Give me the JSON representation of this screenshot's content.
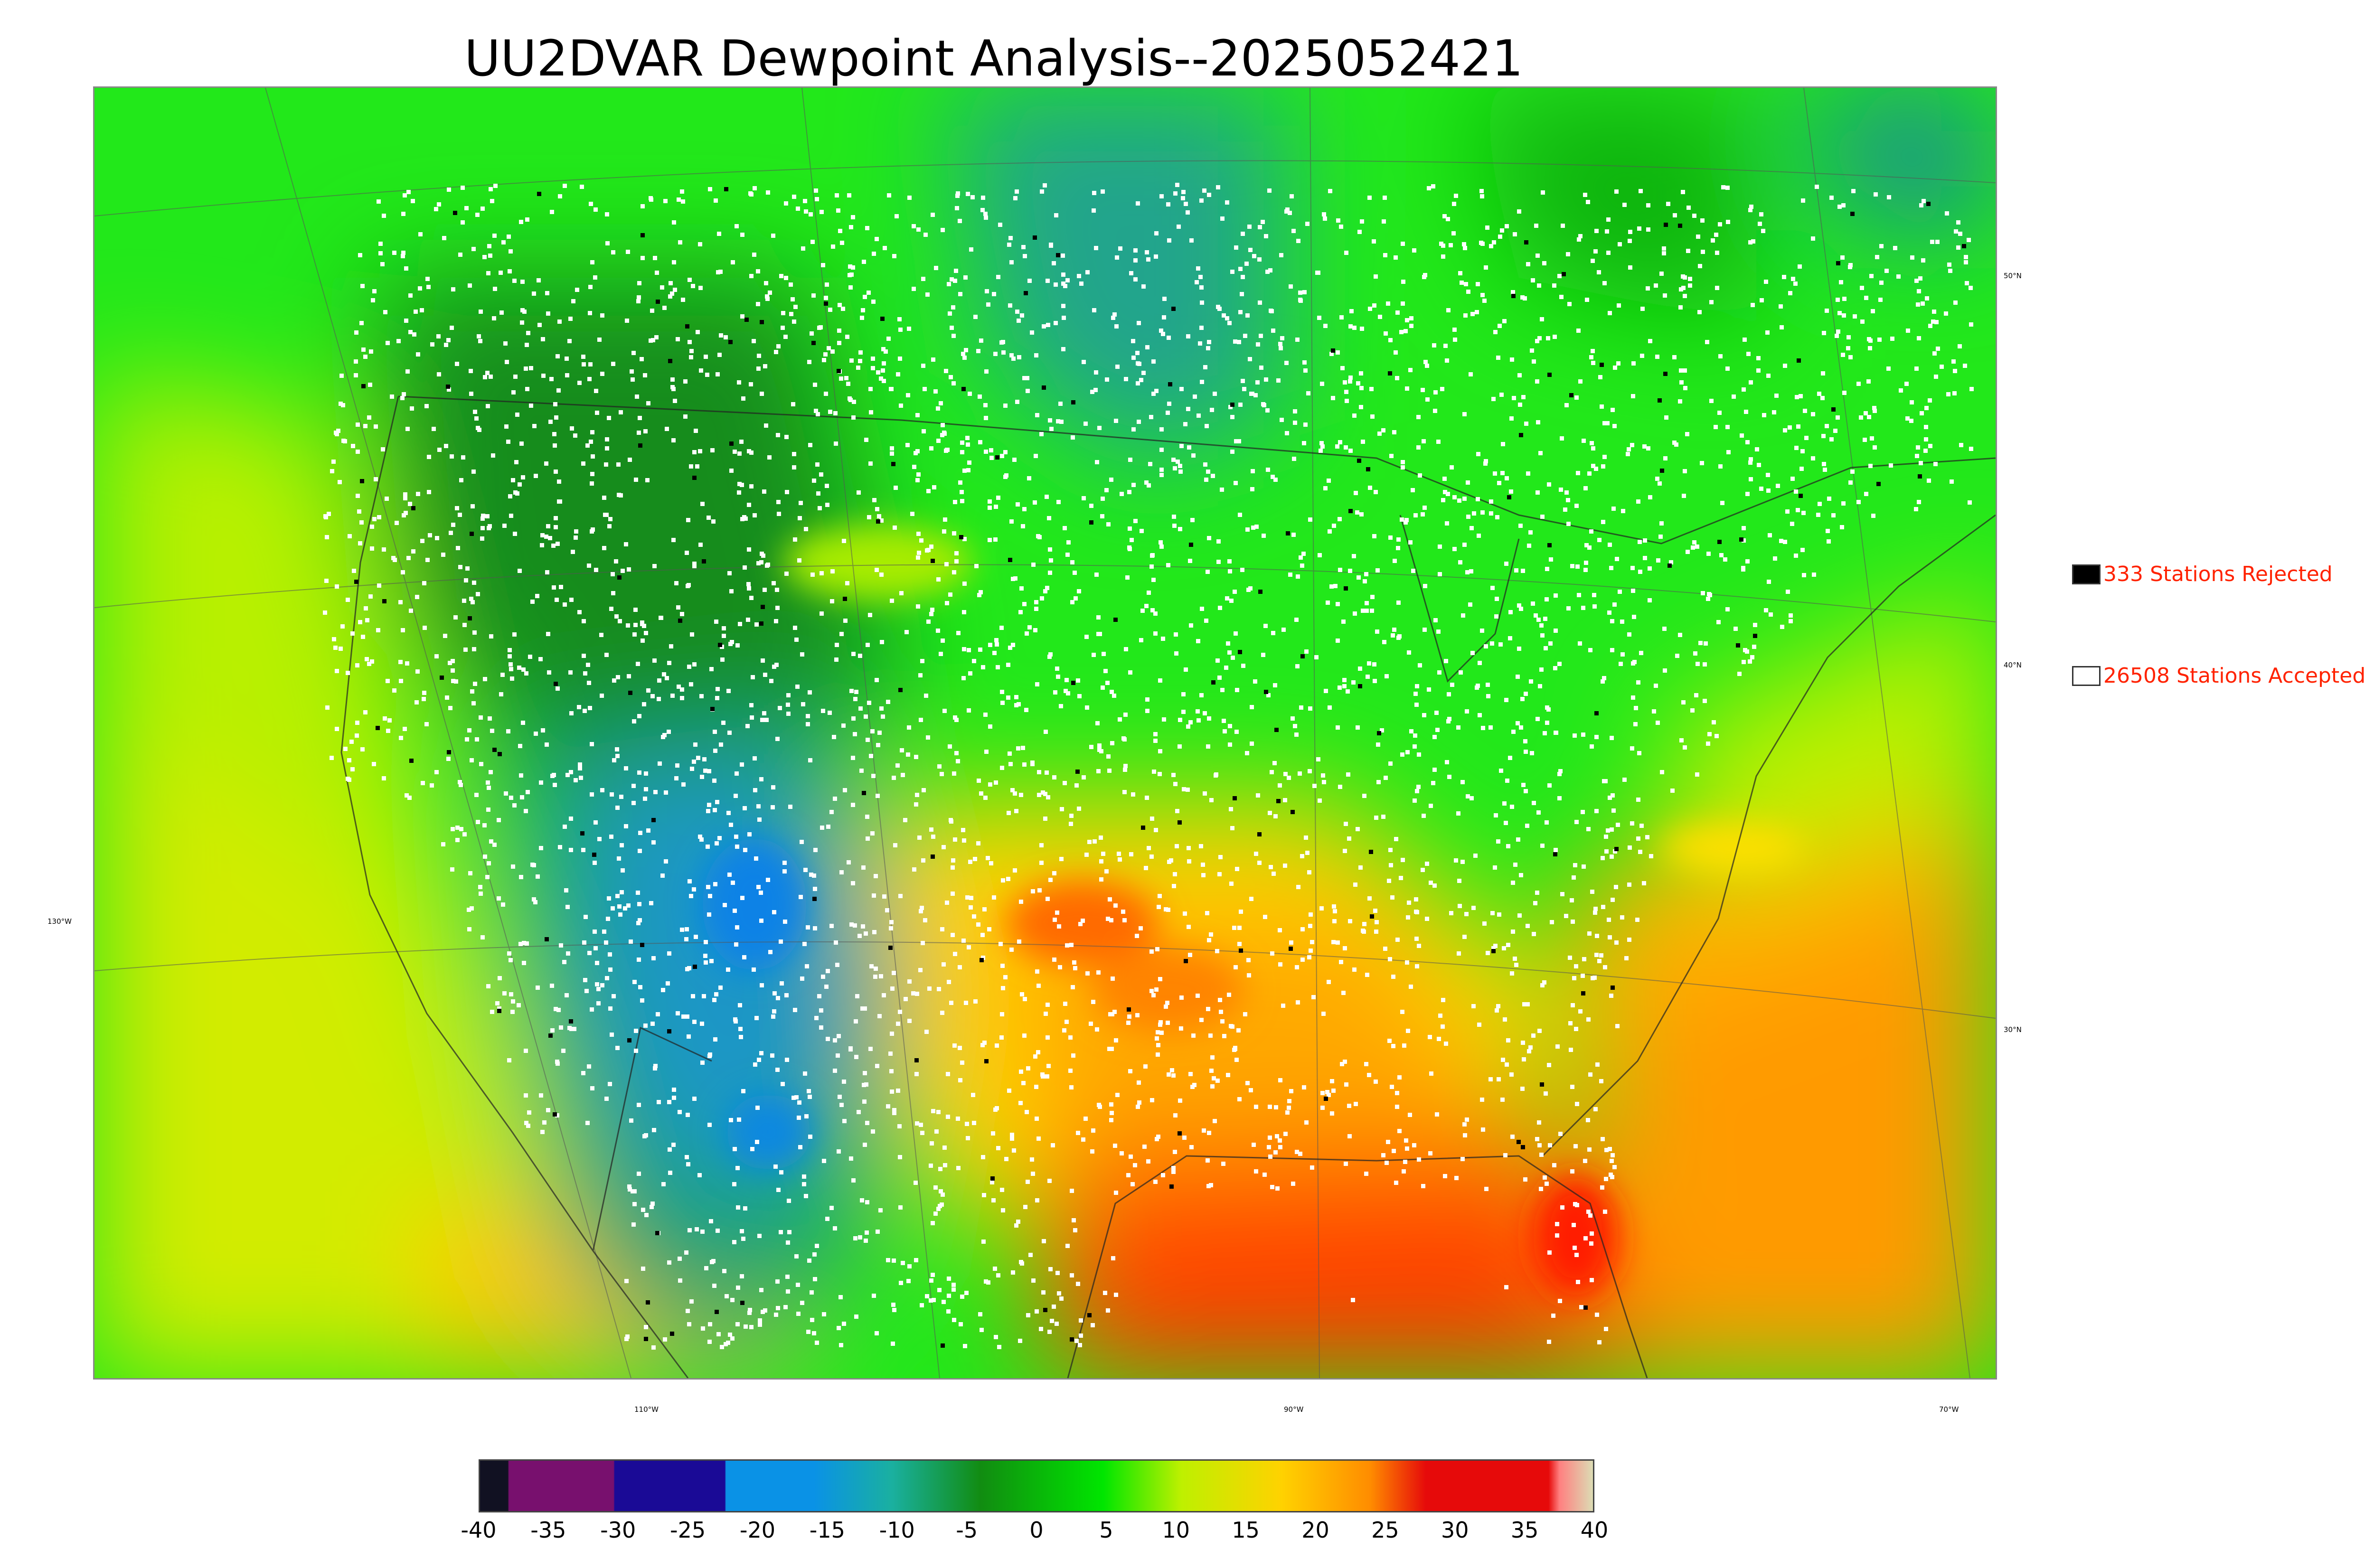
{
  "title": "UU2DVAR Dewpoint Analysis--2025052421",
  "axes": {
    "lon_labels": [
      "110°W",
      "90°W",
      "70°W"
    ],
    "lat_labels": [
      "50°N",
      "40°N",
      "30°N"
    ],
    "left_label": "130°W"
  },
  "legend": {
    "rejected": "333 Stations Rejected",
    "accepted": "26508 Stations Accepted"
  },
  "colorbar": {
    "ticks": [
      "-40",
      "-35",
      "-30",
      "-25",
      "-20",
      "-15",
      "-10",
      "-5",
      "0",
      "5",
      "10",
      "15",
      "20",
      "25",
      "30",
      "35",
      "40"
    ],
    "colors": {
      "very_dry": "#111122",
      "purple": "#78106e",
      "navy": "#1a0a96",
      "blue": "#0a92e6",
      "teal": "#1ab0a0",
      "dark_green": "#118c11",
      "green": "#00e600",
      "yellow_green": "#bef000",
      "yellow": "#ffd200",
      "orange": "#ff8c00",
      "red": "#e60a0a",
      "pink": "#ff8080",
      "pale": "#dcdcb4"
    }
  },
  "chart_data": {
    "type": "heatmap",
    "title": "UU2DVAR Dewpoint Analysis--2025052421",
    "colorbar_range": [
      -40,
      40
    ],
    "colorbar_ticks": [
      -40,
      -35,
      -30,
      -25,
      -20,
      -15,
      -10,
      -5,
      0,
      5,
      10,
      15,
      20,
      25,
      30,
      35,
      40
    ],
    "stations_rejected": 333,
    "stations_accepted": 26508
  }
}
